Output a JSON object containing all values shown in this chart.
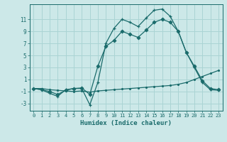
{
  "xlabel": "Humidex (Indice chaleur)",
  "bg_color": "#cce8e8",
  "grid_color": "#aad4d4",
  "line_color": "#1a6b6b",
  "xlim": [
    -0.5,
    23.5
  ],
  "ylim": [
    -4.2,
    13.5
  ],
  "xticks": [
    0,
    1,
    2,
    3,
    4,
    5,
    6,
    7,
    8,
    9,
    10,
    11,
    12,
    13,
    14,
    15,
    16,
    17,
    18,
    19,
    20,
    21,
    22,
    23
  ],
  "yticks": [
    -3,
    -1,
    1,
    3,
    5,
    7,
    9,
    11
  ],
  "curve1_x": [
    0,
    1,
    2,
    3,
    4,
    5,
    6,
    7,
    8,
    9,
    10,
    11,
    12,
    13,
    14,
    15,
    16,
    17,
    18,
    19,
    20,
    21,
    22,
    23
  ],
  "curve1_y": [
    -0.5,
    -0.7,
    -1.3,
    -1.8,
    -0.7,
    -0.5,
    -0.5,
    -3.2,
    0.5,
    7.0,
    9.5,
    11.0,
    10.5,
    9.8,
    11.2,
    12.5,
    12.7,
    11.5,
    9.0,
    5.5,
    3.0,
    0.5,
    -0.7,
    -0.8
  ],
  "curve2_x": [
    0,
    1,
    2,
    3,
    4,
    5,
    6,
    7,
    8,
    9,
    10,
    11,
    12,
    13,
    14,
    15,
    16,
    17,
    18,
    19,
    20,
    21,
    22,
    23
  ],
  "curve2_y": [
    -0.5,
    -0.7,
    -1.0,
    -1.5,
    -0.8,
    -0.5,
    -0.4,
    -1.5,
    3.2,
    6.5,
    7.5,
    9.0,
    8.5,
    8.0,
    9.2,
    10.5,
    11.0,
    10.5,
    9.0,
    5.5,
    3.2,
    0.8,
    -0.5,
    -0.7
  ],
  "curve3_x": [
    0,
    1,
    2,
    3,
    4,
    5,
    6,
    7,
    8,
    9,
    10,
    11,
    12,
    13,
    14,
    15,
    16,
    17,
    18,
    19,
    20,
    21,
    22,
    23
  ],
  "curve3_y": [
    -0.5,
    -0.5,
    -0.7,
    -0.8,
    -0.9,
    -1.0,
    -0.9,
    -1.1,
    -0.9,
    -0.8,
    -0.7,
    -0.6,
    -0.5,
    -0.4,
    -0.3,
    -0.2,
    -0.1,
    0.0,
    0.2,
    0.5,
    1.0,
    1.5,
    2.0,
    2.5
  ]
}
